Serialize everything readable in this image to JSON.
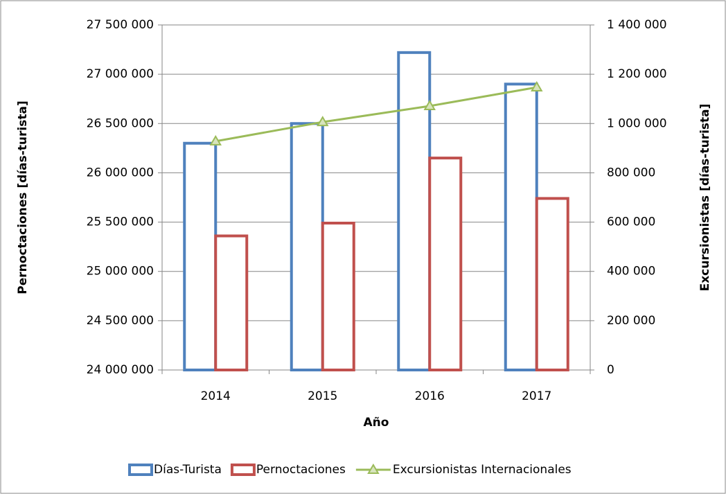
{
  "chart_data": {
    "type": "bar_line",
    "xlabel": "Año",
    "ylabel": "Pernoctaciones [días-turista]",
    "y2label": "Excursionistas [días-turista]",
    "categories": [
      "2014",
      "2015",
      "2016",
      "2017"
    ],
    "series": [
      {
        "name": "Días-Turista",
        "color": "#4f81bd",
        "type": "bar",
        "values": [
          26300000,
          26500000,
          27220000,
          26900000
        ]
      },
      {
        "name": "Pernoctaciones",
        "color": "#c0504d",
        "type": "bar",
        "values": [
          25360000,
          25490000,
          26150000,
          25740000
        ]
      },
      {
        "name": "Excursionistas Internacionales",
        "color": "#9bbb59",
        "type": "line",
        "axis": "y2",
        "values": [
          928000,
          1006000,
          1071000,
          1147000
        ]
      }
    ],
    "ylim": [
      24000000,
      27500000
    ],
    "yticks": [
      {
        "value": 24000000,
        "label": "24 000 000"
      },
      {
        "value": 24500000,
        "label": "24 500 000"
      },
      {
        "value": 25000000,
        "label": "25 000 000"
      },
      {
        "value": 25500000,
        "label": "25 500 000"
      },
      {
        "value": 26000000,
        "label": "26 000 000"
      },
      {
        "value": 26500000,
        "label": "26 500 000"
      },
      {
        "value": 27000000,
        "label": "27 000 000"
      },
      {
        "value": 27500000,
        "label": "27 500 000"
      }
    ],
    "y2lim": [
      0,
      1400000
    ],
    "y2ticks": [
      0,
      {
        "value": 200000,
        "label": "200 000"
      },
      {
        "value": 400000,
        "label": "400 000"
      },
      {
        "value": 600000,
        "label": "600 000"
      },
      {
        "value": 800000,
        "label": "800 000"
      },
      {
        "value": 1000000,
        "label": "1 000 000"
      },
      {
        "value": 1200000,
        "label": "1 200 000"
      },
      {
        "value": 1400000,
        "label": "1 400 000"
      }
    ],
    "grid": true,
    "legend": "bottom"
  }
}
